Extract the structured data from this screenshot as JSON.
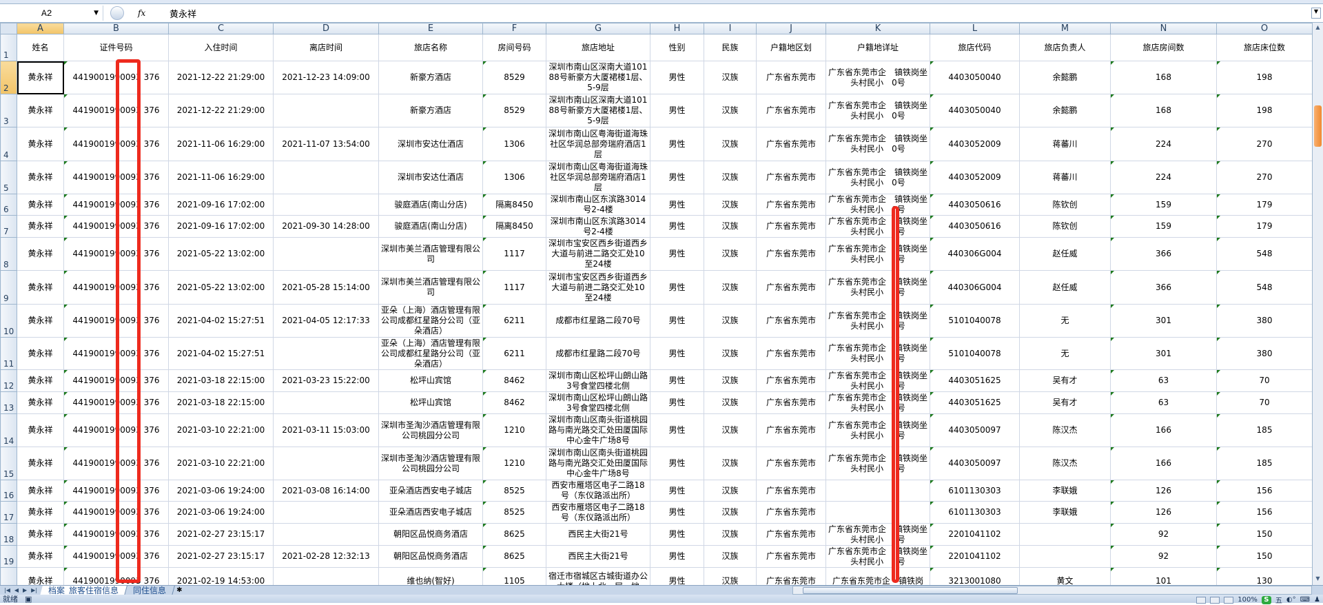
{
  "formula_bar": {
    "name_box": "A2",
    "fx_label": "fx",
    "content": "黄永祥"
  },
  "column_letters": [
    "A",
    "B",
    "C",
    "D",
    "E",
    "F",
    "G",
    "H",
    "I",
    "J",
    "K",
    "L",
    "M",
    "N",
    "O"
  ],
  "headers": [
    "姓名",
    "证件号码",
    "入住时间",
    "离店时间",
    "旅店名称",
    "房间号码",
    "旅店地址",
    "性别",
    "民族",
    "户籍地区划",
    "户籍地详址",
    "旅店代码",
    "旅店负责人",
    "旅店房间数",
    "旅店床位数"
  ],
  "rows": [
    {
      "n": "2",
      "cells": [
        "黄永祥",
        "4419001990093 376",
        "2021-12-22 21:29:00",
        "2021-12-23 14:09:00",
        "新豪方酒店",
        "8529",
        "深圳市南山区深南大道10188号新豪方大厦裙楼1层、5-9层",
        "男性",
        "汉族",
        "广东省东莞市",
        "广东省东莞市企　镇铁岗坐头村民小　0号",
        "4403050040",
        "余懿鹏",
        "168",
        "198"
      ]
    },
    {
      "n": "3",
      "cells": [
        "黄永祥",
        "4419001990093 376",
        "2021-12-22 21:29:00",
        "",
        "新豪方酒店",
        "8529",
        "深圳市南山区深南大道10188号新豪方大厦裙楼1层、5-9层",
        "男性",
        "汉族",
        "广东省东莞市",
        "广东省东莞市企　镇铁岗坐头村民小　0号",
        "4403050040",
        "余懿鹏",
        "168",
        "198"
      ]
    },
    {
      "n": "4",
      "cells": [
        "黄永祥",
        "4419001990093 376",
        "2021-11-06 16:29:00",
        "2021-11-07 13:54:00",
        "深圳市安达仕酒店",
        "1306",
        "深圳市南山区粤海街道海珠社区华润总部旁瑞府酒店1层",
        "男性",
        "汉族",
        "广东省东莞市",
        "广东省东莞市企　镇铁岗坐头村民小　0号",
        "4403052009",
        "蒋蕃川",
        "224",
        "270"
      ]
    },
    {
      "n": "5",
      "cells": [
        "黄永祥",
        "4419001990093 376",
        "2021-11-06 16:29:00",
        "",
        "深圳市安达仕酒店",
        "1306",
        "深圳市南山区粤海街道海珠社区华润总部旁瑞府酒店1层",
        "男性",
        "汉族",
        "广东省东莞市",
        "广东省东莞市企　镇铁岗坐头村民小　0号",
        "4403052009",
        "蒋蕃川",
        "224",
        "270"
      ]
    },
    {
      "n": "6",
      "cells": [
        "黄永祥",
        "4419001990093 376",
        "2021-09-16 17:02:00",
        "",
        "骏庭酒店(南山分店)",
        "隔离8450",
        "深圳市南山区东滨路3014号2-4楼",
        "男性",
        "汉族",
        "广东省东莞市",
        "广东省东莞市企　镇铁岗坐头村民小　0号",
        "4403050616",
        "陈钦创",
        "159",
        "179"
      ]
    },
    {
      "n": "7",
      "cells": [
        "黄永祥",
        "4419001990093 376",
        "2021-09-16 17:02:00",
        "2021-09-30 14:28:00",
        "骏庭酒店(南山分店)",
        "隔离8450",
        "深圳市南山区东滨路3014号2-4楼",
        "男性",
        "汉族",
        "广东省东莞市",
        "广东省东莞市企　镇铁岗坐头村民小　0号",
        "4403050616",
        "陈钦创",
        "159",
        "179"
      ]
    },
    {
      "n": "8",
      "cells": [
        "黄永祥",
        "4419001990093 376",
        "2021-05-22 13:02:00",
        "",
        "深圳市美兰酒店管理有限公司",
        "1117",
        "深圳市宝安区西乡街道西乡大道与前进二路交汇处10至24楼",
        "男性",
        "汉族",
        "广东省东莞市",
        "广东省东莞市企　镇铁岗坐头村民小　0号",
        "440306G004",
        "赵任威",
        "366",
        "548"
      ]
    },
    {
      "n": "9",
      "cells": [
        "黄永祥",
        "4419001990093 376",
        "2021-05-22 13:02:00",
        "2021-05-28 15:14:00",
        "深圳市美兰酒店管理有限公司",
        "1117",
        "深圳市宝安区西乡街道西乡大道与前进二路交汇处10至24楼",
        "男性",
        "汉族",
        "广东省东莞市",
        "广东省东莞市企　镇铁岗坐头村民小　0号",
        "440306G004",
        "赵任威",
        "366",
        "548"
      ]
    },
    {
      "n": "10",
      "cells": [
        "黄永祥",
        "4419001990093 376",
        "2021-04-02 15:27:51",
        "2021-04-05 12:17:33",
        "亚朵（上海）酒店管理有限公司成都红星路分公司（亚朵酒店）",
        "6211",
        "成都市红星路二段70号",
        "男性",
        "汉族",
        "广东省东莞市",
        "广东省东莞市企　镇铁岗坐头村民小　0号",
        "5101040078",
        "无",
        "301",
        "380"
      ]
    },
    {
      "n": "11",
      "cells": [
        "黄永祥",
        "4419001990093 376",
        "2021-04-02 15:27:51",
        "",
        "亚朵（上海）酒店管理有限公司成都红星路分公司（亚朵酒店）",
        "6211",
        "成都市红星路二段70号",
        "男性",
        "汉族",
        "广东省东莞市",
        "广东省东莞市企　镇铁岗坐头村民小　0号",
        "5101040078",
        "无",
        "301",
        "380"
      ]
    },
    {
      "n": "12",
      "cells": [
        "黄永祥",
        "4419001990093 376",
        "2021-03-18 22:15:00",
        "2021-03-23 15:22:00",
        "松坪山宾馆",
        "8462",
        "深圳市南山区松坪山朗山路3号食堂四楼北侧",
        "男性",
        "汉族",
        "广东省东莞市",
        "广东省东莞市企　镇铁岗坐头村民小　0号",
        "4403051625",
        "吴有才",
        "63",
        "70"
      ]
    },
    {
      "n": "13",
      "cells": [
        "黄永祥",
        "4419001990093 376",
        "2021-03-18 22:15:00",
        "",
        "松坪山宾馆",
        "8462",
        "深圳市南山区松坪山朗山路3号食堂四楼北侧",
        "男性",
        "汉族",
        "广东省东莞市",
        "广东省东莞市企　镇铁岗坐头村民小　0号",
        "4403051625",
        "吴有才",
        "63",
        "70"
      ]
    },
    {
      "n": "14",
      "cells": [
        "黄永祥",
        "4419001990093 376",
        "2021-03-10 22:21:00",
        "2021-03-11 15:03:00",
        "深圳市圣淘沙酒店管理有限公司桃园分公司",
        "1210",
        "深圳市南山区南头街道桃园路与南光路交汇处田厦国际中心金牛广场8号",
        "男性",
        "汉族",
        "广东省东莞市",
        "广东省东莞市企　镇铁岗坐头村民小　0号",
        "4403050097",
        "陈汉杰",
        "166",
        "185"
      ]
    },
    {
      "n": "15",
      "cells": [
        "黄永祥",
        "4419001990093 376",
        "2021-03-10 22:21:00",
        "",
        "深圳市圣淘沙酒店管理有限公司桃园分公司",
        "1210",
        "深圳市南山区南头街道桃园路与南光路交汇处田厦国际中心金牛广场8号",
        "男性",
        "汉族",
        "广东省东莞市",
        "广东省东莞市企　镇铁岗坐头村民小　0号",
        "4403050097",
        "陈汉杰",
        "166",
        "185"
      ]
    },
    {
      "n": "16",
      "cells": [
        "黄永祥",
        "4419001990093 376",
        "2021-03-06 19:24:00",
        "2021-03-08 16:14:00",
        "亚朵酒店西安电子城店",
        "8525",
        "西安市雁塔区电子二路18号（东仪路派出所）",
        "男性",
        "汉族",
        "广东省东莞市",
        "",
        "6101130303",
        "李联娥",
        "126",
        "156"
      ]
    },
    {
      "n": "17",
      "cells": [
        "黄永祥",
        "4419001990093 376",
        "2021-03-06 19:24:00",
        "",
        "亚朵酒店西安电子城店",
        "8525",
        "西安市雁塔区电子二路18号（东仪路派出所）",
        "男性",
        "汉族",
        "广东省东莞市",
        "",
        "6101130303",
        "李联娥",
        "126",
        "156"
      ]
    },
    {
      "n": "18",
      "cells": [
        "黄永祥",
        "4419001990093 376",
        "2021-02-27 23:15:17",
        "",
        "朝阳区品悦商务酒店",
        "8625",
        "西民主大街21号",
        "男性",
        "汉族",
        "广东省东莞市",
        "广东省东莞市企　镇铁岗坐头村民小　0号",
        "2201041102",
        "",
        "92",
        "150"
      ]
    },
    {
      "n": "19",
      "cells": [
        "黄永祥",
        "4419001990093 376",
        "2021-02-27 23:15:17",
        "2021-02-28 12:32:13",
        "朝阳区品悦商务酒店",
        "8625",
        "西民主大街21号",
        "男性",
        "汉族",
        "广东省东莞市",
        "广东省东莞市企　镇铁岗坐头村民小　0号",
        "2201041102",
        "",
        "92",
        "150"
      ]
    },
    {
      "n": "20",
      "cells": [
        "黄永祥",
        "4419001990093 376",
        "2021-02-19 14:53:00",
        "",
        "维也纳(智好)",
        "1105",
        "宿迁市宿城区古城街道办公大楼（地上北一层、地",
        "男性",
        "汉族",
        "广东省东莞市",
        "广东省东莞市企　镇铁岗",
        "3213001080",
        "黄文",
        "101",
        "130"
      ]
    }
  ],
  "sheet_tabs": [
    {
      "label": "档案_旅客住宿信息",
      "active": true
    },
    {
      "label": "同住信息",
      "active": false
    }
  ],
  "status_bar": {
    "ready": "就绪",
    "zoom": "100%",
    "ime": "S",
    "ime_mode": "五"
  },
  "colors": {
    "annotation_red": "#ee2a1e",
    "selection_header": "#f5c86e",
    "header_bg": "#dbe5f1"
  }
}
